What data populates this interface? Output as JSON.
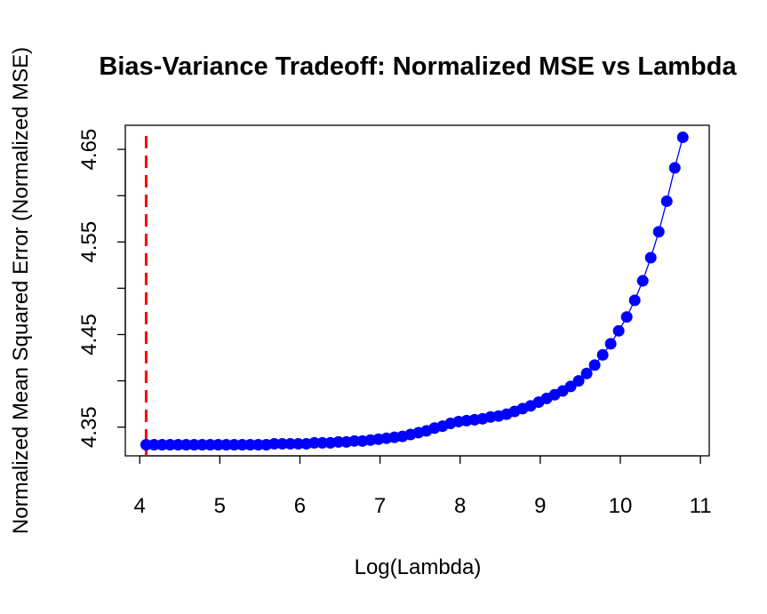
{
  "chart_data": {
    "type": "scatter",
    "title": "Bias-Variance Tradeoff: Normalized MSE vs Lambda",
    "xlabel": "Log(Lambda)",
    "ylabel": "Normalized Mean Squared Error (Normalized MSE)",
    "x": [
      4.08,
      4.18,
      4.28,
      4.38,
      4.48,
      4.58,
      4.68,
      4.78,
      4.88,
      4.98,
      5.08,
      5.18,
      5.28,
      5.38,
      5.48,
      5.58,
      5.68,
      5.78,
      5.88,
      5.98,
      6.08,
      6.18,
      6.28,
      6.38,
      6.48,
      6.58,
      6.68,
      6.78,
      6.88,
      6.98,
      7.08,
      7.18,
      7.28,
      7.38,
      7.48,
      7.58,
      7.68,
      7.78,
      7.88,
      7.98,
      8.08,
      8.18,
      8.28,
      8.38,
      8.48,
      8.58,
      8.68,
      8.78,
      8.88,
      8.98,
      9.08,
      9.18,
      9.28,
      9.38,
      9.48,
      9.58,
      9.68,
      9.78,
      9.88,
      9.98,
      10.08,
      10.18,
      10.28,
      10.38,
      10.48,
      10.58,
      10.68,
      10.78
    ],
    "values": [
      4.331,
      4.331,
      4.331,
      4.331,
      4.331,
      4.331,
      4.331,
      4.331,
      4.331,
      4.331,
      4.331,
      4.331,
      4.331,
      4.331,
      4.331,
      4.331,
      4.332,
      4.332,
      4.332,
      4.332,
      4.332,
      4.333,
      4.333,
      4.333,
      4.334,
      4.334,
      4.335,
      4.335,
      4.336,
      4.337,
      4.338,
      4.339,
      4.34,
      4.342,
      4.344,
      4.346,
      4.349,
      4.351,
      4.354,
      4.356,
      4.357,
      4.358,
      4.359,
      4.361,
      4.362,
      4.364,
      4.367,
      4.37,
      4.373,
      4.377,
      4.381,
      4.385,
      4.389,
      4.394,
      4.4,
      4.408,
      4.417,
      4.428,
      4.44,
      4.454,
      4.469,
      4.487,
      4.508,
      4.533,
      4.561,
      4.594,
      4.63,
      4.663
    ],
    "color": "#0000ff",
    "vline": 4.08,
    "vline_color": "#ff0000",
    "xlim": [
      3.82,
      11.11
    ],
    "xticks": [
      4,
      5,
      6,
      7,
      8,
      9,
      10,
      11
    ],
    "ylim": [
      4.319,
      4.676
    ],
    "yticks": [
      4.35,
      4.45,
      4.55,
      4.65
    ],
    "yminor_ticks": [
      4.4,
      4.5,
      4.6
    ]
  }
}
